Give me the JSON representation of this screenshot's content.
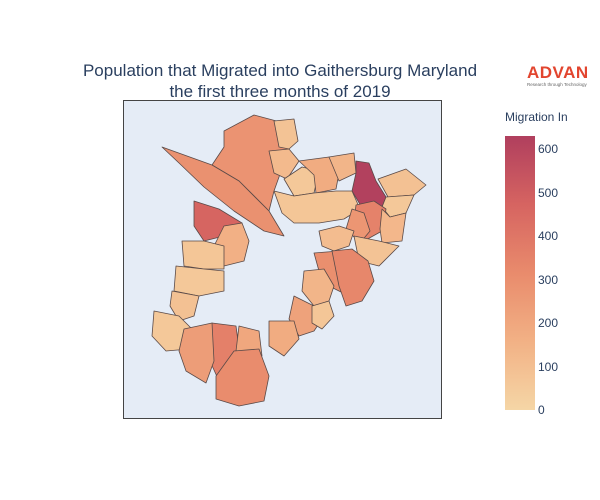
{
  "title": {
    "line1": "Population that Migrated into Gaithersburg Maryland",
    "line2": "the first three months of 2019"
  },
  "logo": {
    "name": "ADVAN",
    "tagline": "Research through Technology"
  },
  "colorbar": {
    "title": "Migration In",
    "min": 0,
    "max": 630,
    "ticks": [
      "0",
      "100",
      "200",
      "300",
      "400",
      "500",
      "600"
    ],
    "colors": [
      "#f5d6a6",
      "#f2b185",
      "#e98b6c",
      "#d66461",
      "#b03f5e"
    ]
  },
  "map": {
    "background": "#e5ecf6",
    "region_count": 32
  },
  "chart_data": {
    "type": "choropleth",
    "title": "Population that Migrated into Gaithersburg Maryland the first three months of 2019",
    "colorbar_label": "Migration In",
    "value_range": [
      0,
      630
    ],
    "regions": [
      {
        "id": "r1",
        "value": 280
      },
      {
        "id": "r2",
        "value": 290
      },
      {
        "id": "r3",
        "value": 80
      },
      {
        "id": "r4",
        "value": 120
      },
      {
        "id": "r5",
        "value": 60
      },
      {
        "id": "r6",
        "value": 180
      },
      {
        "id": "r7",
        "value": 140
      },
      {
        "id": "r8",
        "value": 620
      },
      {
        "id": "r9",
        "value": 90
      },
      {
        "id": "r10",
        "value": 70
      },
      {
        "id": "r11",
        "value": 60
      },
      {
        "id": "r12",
        "value": 350
      },
      {
        "id": "r13",
        "value": 270
      },
      {
        "id": "r14",
        "value": 130
      },
      {
        "id": "r15",
        "value": 470
      },
      {
        "id": "r16",
        "value": 160
      },
      {
        "id": "r17",
        "value": 70
      },
      {
        "id": "r18",
        "value": 60
      },
      {
        "id": "r19",
        "value": 110
      },
      {
        "id": "r20",
        "value": 80
      },
      {
        "id": "r21",
        "value": 300
      },
      {
        "id": "r22",
        "value": 330
      },
      {
        "id": "r23",
        "value": 140
      },
      {
        "id": "r24",
        "value": 90
      },
      {
        "id": "r25",
        "value": 220
      },
      {
        "id": "r26",
        "value": 180
      },
      {
        "id": "r27",
        "value": 60
      },
      {
        "id": "r28",
        "value": 360
      },
      {
        "id": "r29",
        "value": 240
      },
      {
        "id": "r30",
        "value": 200
      },
      {
        "id": "r31",
        "value": 310
      },
      {
        "id": "r32",
        "value": 70
      }
    ]
  }
}
